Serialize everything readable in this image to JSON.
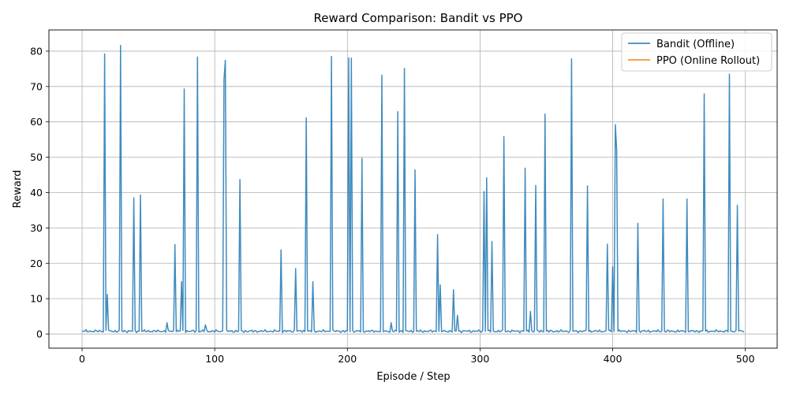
{
  "chart_data": {
    "type": "line",
    "title": "Reward Comparison: Bandit vs PPO",
    "xlabel": "Episode / Step",
    "ylabel": "Reward",
    "xlim": [
      -25,
      524
    ],
    "ylim": [
      -4,
      86
    ],
    "xticks": [
      0,
      100,
      200,
      300,
      400,
      500
    ],
    "yticks": [
      0,
      10,
      20,
      30,
      40,
      50,
      60,
      70,
      80
    ],
    "grid": true,
    "legend_position": "top-right",
    "baseline": 0.8,
    "series": [
      {
        "name": "Bandit (Offline)",
        "color": "#1f77b4",
        "spikes": [
          [
            17,
            79.2
          ],
          [
            19,
            11.2
          ],
          [
            29,
            81.6
          ],
          [
            39,
            38.5
          ],
          [
            44,
            39.3
          ],
          [
            64,
            3.2
          ],
          [
            70,
            25.3
          ],
          [
            75,
            14.8
          ],
          [
            77,
            69.3
          ],
          [
            87,
            78.3
          ],
          [
            93,
            2.6
          ],
          [
            107,
            72.0
          ],
          [
            108,
            77.4
          ],
          [
            119,
            43.7
          ],
          [
            150,
            23.8
          ],
          [
            161,
            18.5
          ],
          [
            169,
            61.1
          ],
          [
            174,
            14.8
          ],
          [
            188,
            78.5
          ],
          [
            201,
            78.1
          ],
          [
            203,
            78.0
          ],
          [
            211,
            49.7
          ],
          [
            226,
            73.2
          ],
          [
            233,
            3.2
          ],
          [
            238,
            62.9
          ],
          [
            243,
            75.1
          ],
          [
            251,
            46.4
          ],
          [
            268,
            28.1
          ],
          [
            270,
            13.9
          ],
          [
            280,
            12.5
          ],
          [
            283,
            5.3
          ],
          [
            303,
            40.3
          ],
          [
            305,
            44.2
          ],
          [
            309,
            26.2
          ],
          [
            318,
            55.8
          ],
          [
            334,
            46.9
          ],
          [
            338,
            6.4
          ],
          [
            342,
            42.0
          ],
          [
            349,
            62.2
          ],
          [
            369,
            77.8
          ],
          [
            381,
            41.9
          ],
          [
            396,
            25.4
          ],
          [
            400,
            19.0
          ],
          [
            402,
            59.2
          ],
          [
            403,
            52.0
          ],
          [
            419,
            31.3
          ],
          [
            438,
            38.2
          ],
          [
            456,
            38.2
          ],
          [
            469,
            67.9
          ],
          [
            488,
            73.5
          ],
          [
            494,
            36.4
          ]
        ]
      },
      {
        "name": "PPO (Online Rollout)",
        "color": "#ff7f0e",
        "spikes": []
      }
    ]
  }
}
